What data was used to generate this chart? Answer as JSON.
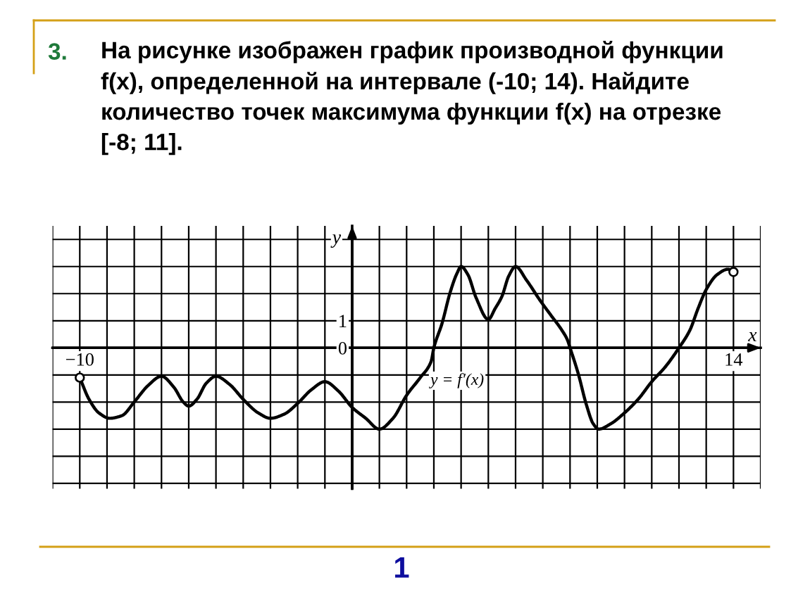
{
  "chart_data": {
    "type": "line",
    "title": "На рисунке изображен график производной функции\nf(x), определенной на интервале (-10; 14). Найдите\nколичество точек максимума функции f(x) на отрезке\n[-8; 11].",
    "xlabel": "x",
    "ylabel": "y",
    "annotations": [
      "3.",
      "y = f′(x)",
      "1"
    ],
    "series": [
      {
        "color": "#000000",
        "x": [
          -10,
          -9.66,
          -9.3,
          -8.9,
          -8.45,
          -8,
          -7.5,
          -7,
          -6.55,
          -6.2,
          -6,
          -5.7,
          -5.35,
          -5,
          -4.5,
          -4,
          -3.45,
          -3,
          -2.5,
          -2,
          -1.5,
          -1,
          -0.5,
          0,
          0.5,
          1,
          1.5,
          2,
          2.5,
          2.9,
          3,
          3.3,
          3.6,
          3.85,
          4,
          4.25,
          4.55,
          5,
          5.25,
          5.5,
          5.75,
          6,
          6.4,
          6.9,
          7.3,
          7.7,
          7.9,
          8,
          8.3,
          8.6,
          8.85,
          9.05,
          9.5,
          10,
          10.5,
          11,
          11.5,
          12,
          12.4,
          12.7,
          13,
          13.4,
          13.8,
          14
        ],
        "values": [
          -1.1,
          -1.9,
          -2.4,
          -2.6,
          -2.5,
          -2,
          -1.4,
          -1.05,
          -1.45,
          -2.0,
          -2.15,
          -1.9,
          -1.3,
          -1.05,
          -1.35,
          -1.9,
          -2.4,
          -2.6,
          -2.45,
          -2.05,
          -1.55,
          -1.25,
          -1.6,
          -2.2,
          -2.6,
          -3,
          -2.6,
          -1.75,
          -1.1,
          -0.5,
          0,
          0.9,
          2.05,
          2.75,
          3,
          2.7,
          1.85,
          1.05,
          1.45,
          1.9,
          2.65,
          3,
          2.5,
          1.75,
          1.2,
          0.65,
          0.3,
          0,
          -0.95,
          -2.1,
          -2.8,
          -3,
          -2.8,
          -2.4,
          -1.9,
          -1.25,
          -0.7,
          0,
          0.65,
          1.45,
          2.15,
          2.7,
          2.9,
          2.8
        ]
      },
      {
        "type": "scatter",
        "color": "#000000",
        "marker": "circle",
        "x": [
          -10,
          14
        ],
        "values": [
          -1.1,
          2.8
        ]
      }
    ],
    "xlim": [
      -11,
      15
    ],
    "ylim": [
      -5.2,
      4.5
    ],
    "xticks": [
      {
        "value": -11,
        "label": null
      },
      {
        "value": -10,
        "label": "−10"
      },
      {
        "value": -9,
        "label": null
      },
      {
        "value": -8,
        "label": null
      },
      {
        "value": -7,
        "label": null
      },
      {
        "value": -6,
        "label": null
      },
      {
        "value": -5,
        "label": null
      },
      {
        "value": -4,
        "label": null
      },
      {
        "value": -3,
        "label": null
      },
      {
        "value": -2,
        "label": null
      },
      {
        "value": -1,
        "label": null
      },
      {
        "value": 0,
        "label": null
      },
      {
        "value": 1,
        "label": null
      },
      {
        "value": 2,
        "label": null
      },
      {
        "value": 3,
        "label": null
      },
      {
        "value": 4,
        "label": null
      },
      {
        "value": 5,
        "label": null
      },
      {
        "value": 6,
        "label": null
      },
      {
        "value": 7,
        "label": null
      },
      {
        "value": 8,
        "label": null
      },
      {
        "value": 9,
        "label": null
      },
      {
        "value": 10,
        "label": null
      },
      {
        "value": 11,
        "label": null
      },
      {
        "value": 12,
        "label": null
      },
      {
        "value": 13,
        "label": null
      },
      14,
      {
        "value": 15,
        "label": null
      }
    ],
    "yticks": [
      {
        "value": -5,
        "label": null
      },
      {
        "value": -4,
        "label": null
      },
      {
        "value": -3,
        "label": null
      },
      {
        "value": -2,
        "label": null
      },
      {
        "value": -1,
        "label": null
      },
      0,
      1,
      {
        "value": 2,
        "label": null
      },
      {
        "value": 3,
        "label": null
      },
      {
        "value": 4,
        "label": null
      }
    ],
    "grid": true
  }
}
